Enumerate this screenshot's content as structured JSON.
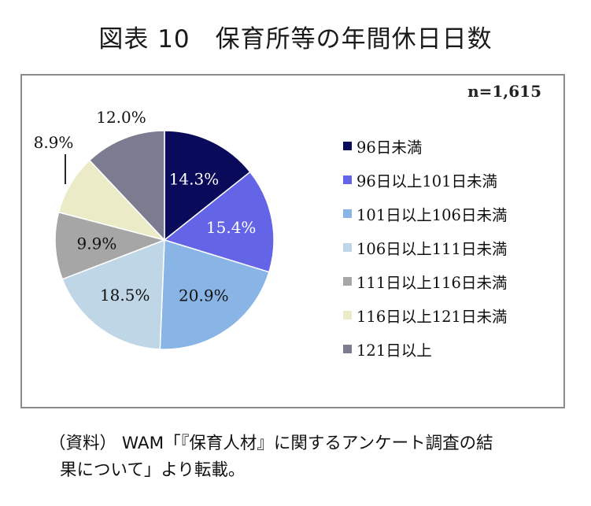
{
  "page": {
    "title": "図表 10　保育所等の年間休日日数",
    "source_line1": "（資料） WAM「『保育人材』に関するアンケート調査の結",
    "source_line2": "果について」より転載。"
  },
  "chart_data": {
    "type": "pie",
    "title": "",
    "annotation": "n=1,615",
    "legend_position": "right",
    "slices": [
      {
        "label": "96日未満",
        "value": 14.3,
        "display": "14.3%",
        "color": "#0a0a5a",
        "label_color": "#ffffff"
      },
      {
        "label": "96日以上101日未満",
        "value": 15.4,
        "display": "15.4%",
        "color": "#6464e6",
        "label_color": "#ffffff"
      },
      {
        "label": "101日以上106日未満",
        "value": 20.9,
        "display": "20.9%",
        "color": "#88b4e6",
        "label_color": "#111111"
      },
      {
        "label": "106日以上111日未満",
        "value": 18.5,
        "display": "18.5%",
        "color": "#bed6e6",
        "label_color": "#111111"
      },
      {
        "label": "111日以上116日未満",
        "value": 9.9,
        "display": "9.9%",
        "color": "#a6a6a6",
        "label_color": "#111111"
      },
      {
        "label": "116日以上121日未満",
        "value": 8.9,
        "display": "8.9%",
        "color": "#ecebc8",
        "label_color": "#111111"
      },
      {
        "label": "121日以上",
        "value": 12.0,
        "display": "12.0%",
        "color": "#7c7c90",
        "label_color": "#111111"
      }
    ]
  }
}
